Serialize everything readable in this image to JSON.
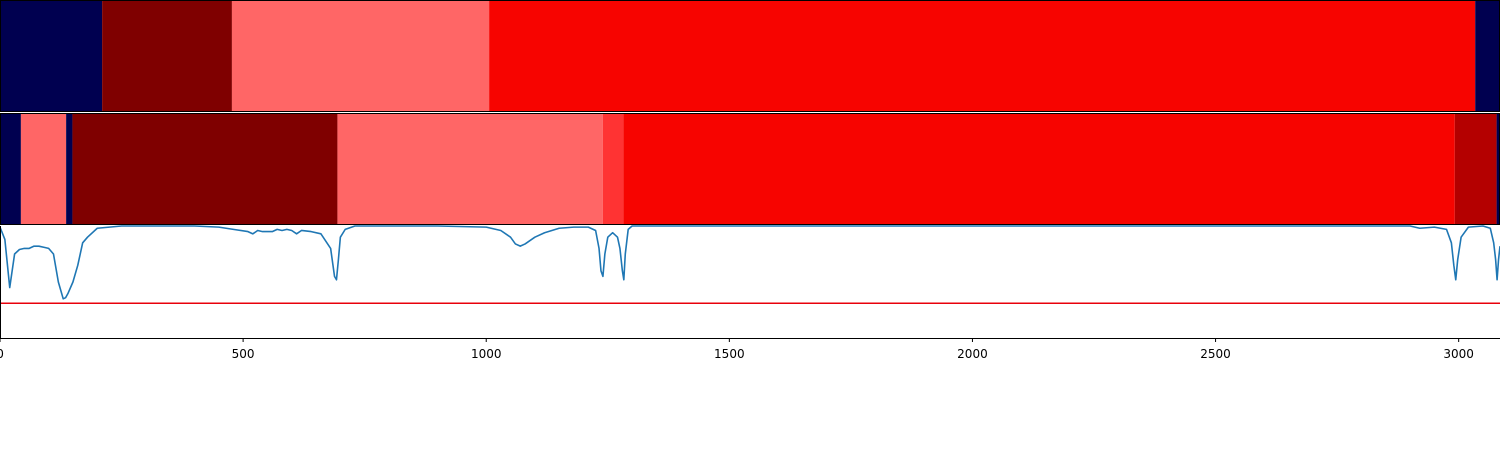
{
  "chart_data": {
    "type": "segmentation-timeline",
    "xlim": [
      0,
      3085
    ],
    "x_ticks": [
      0,
      500,
      1000,
      1500,
      2000,
      2500,
      3000
    ],
    "x_tick_labels": [
      "0",
      "500",
      "1000",
      "1500",
      "2000",
      "2500",
      "3000"
    ],
    "tracks": [
      {
        "segments": [
          {
            "start": 0,
            "end": 210,
            "color": "#000050"
          },
          {
            "start": 210,
            "end": 477,
            "color": "#7f0000"
          },
          {
            "start": 477,
            "end": 1006,
            "color": "#ff6666"
          },
          {
            "start": 1006,
            "end": 3034,
            "color": "#f70400"
          },
          {
            "start": 3034,
            "end": 3085,
            "color": "#000050"
          }
        ]
      },
      {
        "segments": [
          {
            "start": 0,
            "end": 43,
            "color": "#000050"
          },
          {
            "start": 43,
            "end": 136,
            "color": "#ff6666"
          },
          {
            "start": 136,
            "end": 149,
            "color": "#000050"
          },
          {
            "start": 149,
            "end": 694,
            "color": "#7f0000"
          },
          {
            "start": 694,
            "end": 1240,
            "color": "#ff6666"
          },
          {
            "start": 1240,
            "end": 1282,
            "color": "#ff3333"
          },
          {
            "start": 1282,
            "end": 2992,
            "color": "#f70400"
          },
          {
            "start": 2992,
            "end": 3078,
            "color": "#b40000"
          },
          {
            "start": 3078,
            "end": 3085,
            "color": "#000050"
          }
        ]
      }
    ],
    "line_plot": {
      "ylim": [
        0,
        1
      ],
      "threshold": 0.31,
      "threshold_color": "#e8000b",
      "line_color": "#1f77b4",
      "x": [
        0,
        10,
        20,
        30,
        40,
        50,
        60,
        70,
        80,
        90,
        100,
        110,
        120,
        130,
        135,
        140,
        150,
        160,
        170,
        180,
        200,
        250,
        400,
        450,
        480,
        510,
        520,
        530,
        540,
        550,
        560,
        570,
        580,
        590,
        600,
        610,
        620,
        640,
        660,
        680,
        688,
        692,
        696,
        700,
        710,
        730,
        760,
        900,
        1000,
        1030,
        1050,
        1060,
        1070,
        1080,
        1090,
        1100,
        1120,
        1150,
        1180,
        1210,
        1225,
        1232,
        1236,
        1240,
        1244,
        1250,
        1260,
        1270,
        1275,
        1280,
        1283,
        1286,
        1292,
        1300,
        1400,
        2000,
        2800,
        2900,
        2920,
        2950,
        2975,
        2985,
        2990,
        2994,
        2998,
        3005,
        3020,
        3050,
        3065,
        3072,
        3076,
        3079,
        3082,
        3085
      ],
      "y": [
        0.99,
        0.88,
        0.45,
        0.75,
        0.79,
        0.8,
        0.8,
        0.82,
        0.82,
        0.81,
        0.8,
        0.75,
        0.5,
        0.35,
        0.36,
        0.4,
        0.5,
        0.65,
        0.85,
        0.9,
        0.98,
        1.0,
        1.0,
        0.99,
        0.97,
        0.95,
        0.93,
        0.96,
        0.95,
        0.95,
        0.95,
        0.97,
        0.96,
        0.97,
        0.96,
        0.93,
        0.96,
        0.95,
        0.93,
        0.8,
        0.55,
        0.52,
        0.7,
        0.9,
        0.97,
        1.0,
        1.0,
        1.0,
        0.99,
        0.96,
        0.9,
        0.84,
        0.82,
        0.84,
        0.87,
        0.9,
        0.94,
        0.98,
        0.99,
        0.99,
        0.96,
        0.8,
        0.6,
        0.55,
        0.75,
        0.9,
        0.94,
        0.9,
        0.8,
        0.6,
        0.52,
        0.75,
        0.97,
        1.0,
        1.0,
        1.0,
        1.0,
        1.0,
        0.98,
        0.99,
        0.97,
        0.85,
        0.65,
        0.52,
        0.7,
        0.9,
        0.99,
        1.0,
        0.98,
        0.85,
        0.7,
        0.52,
        0.7,
        0.82
      ]
    }
  }
}
